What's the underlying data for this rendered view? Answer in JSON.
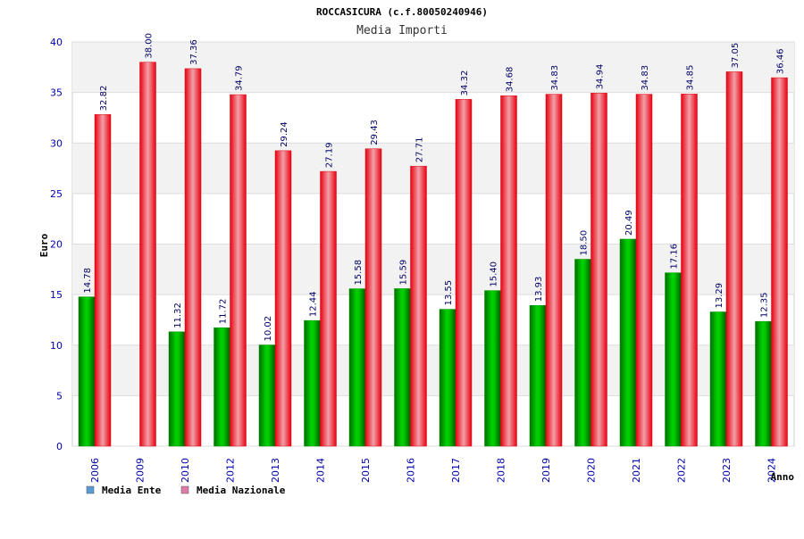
{
  "chart_data": {
    "type": "bar",
    "title": "ROCCASICURA (c.f.80050240946)",
    "subtitle": "Media Importi",
    "ylabel": "Euro",
    "xlabel": "Anno",
    "ylim": [
      0,
      40
    ],
    "yticks": [
      0,
      5,
      10,
      15,
      20,
      25,
      30,
      35,
      40
    ],
    "grid": true,
    "legend_position": "bottom-left",
    "categories": [
      "2006",
      "2009",
      "2010",
      "2012",
      "2013",
      "2014",
      "2015",
      "2016",
      "2017",
      "2018",
      "2019",
      "2020",
      "2021",
      "2022",
      "2023",
      "2024"
    ],
    "series": [
      {
        "name": "Media Ente",
        "legend_color": "#5b9bd5",
        "bar_color": "#00b400",
        "values": [
          14.78,
          null,
          11.32,
          11.72,
          10.02,
          12.44,
          15.58,
          15.59,
          13.55,
          15.4,
          13.93,
          18.5,
          20.49,
          17.16,
          13.29,
          12.35
        ],
        "labels": [
          "14.78",
          "",
          "11.32",
          "11.72",
          "10.02",
          "12.44",
          "15.58",
          "15.59",
          "13.55",
          "15.40",
          "13.93",
          "18.50",
          "20.49",
          "17.16",
          "13.29",
          "12.35"
        ]
      },
      {
        "name": "Media Nazionale",
        "legend_color": "#e07aa8",
        "bar_color": "#e8141e",
        "values": [
          32.82,
          38.0,
          37.36,
          34.79,
          29.24,
          27.19,
          29.43,
          27.71,
          34.32,
          34.68,
          34.83,
          34.94,
          34.83,
          34.85,
          37.05,
          36.46
        ],
        "labels": [
          "32.82",
          "38.00",
          "37.36",
          "34.79",
          "29.24",
          "27.19",
          "29.43",
          "27.71",
          "34.32",
          "34.68",
          "34.83",
          "34.94",
          "34.83",
          "34.85",
          "37.05",
          "36.46"
        ]
      }
    ]
  }
}
